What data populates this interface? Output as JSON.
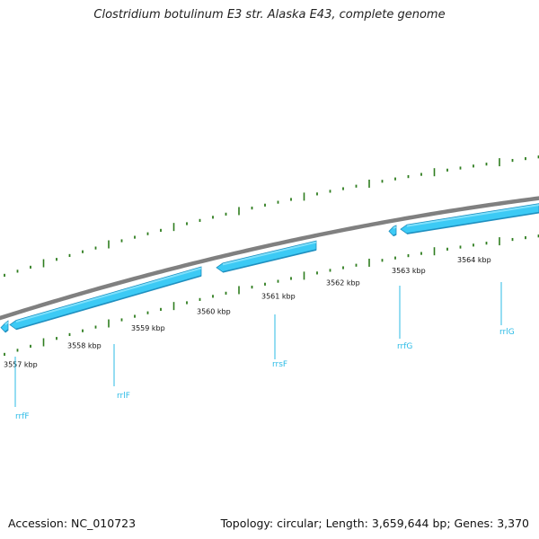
{
  "title": "Clostridium botulinum E3 str. Alaska E43, complete genome",
  "footer": {
    "accession": "Accession: NC_010723",
    "summary": "Topology: circular; Length: 3,659,644 bp; Genes: 3,370"
  },
  "colors": {
    "backbone": "#808080",
    "gene_fill": "#3ccaf5",
    "gene_top": "#7fe0fb",
    "gene_shadow": "#1f8fbf",
    "tick": "#2e7d1e",
    "leader": "#2bbbe6"
  },
  "scale": {
    "labels": [
      "3557 kbp",
      "3558 kbp",
      "3559 kbp",
      "3560 kbp",
      "3561 kbp",
      "3562 kbp",
      "3563 kbp",
      "3564 kbp"
    ]
  },
  "genes": [
    {
      "name": "rrfF"
    },
    {
      "name": "rrlF"
    },
    {
      "name": "rrsF"
    },
    {
      "name": "rrfG"
    },
    {
      "name": "rrlG"
    }
  ]
}
